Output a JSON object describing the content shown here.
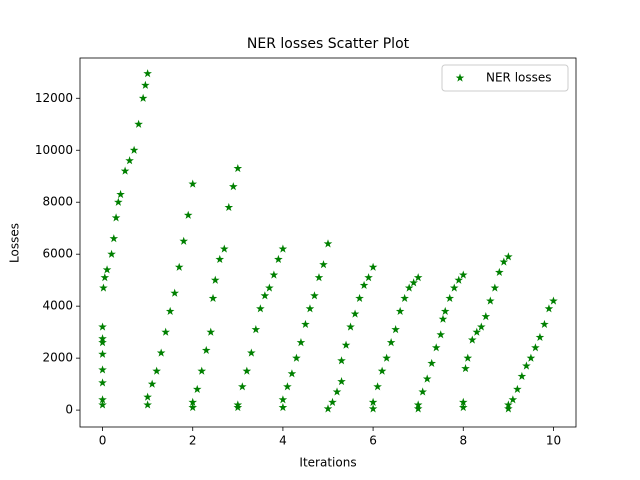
{
  "chart_data": {
    "type": "scatter",
    "title": "NER losses Scatter Plot",
    "x_label": "Iterations",
    "y_label": "Losses",
    "series": [
      {
        "name": "NER losses",
        "color": "#008000",
        "marker": "star",
        "x": [
          0,
          0,
          0,
          0,
          0,
          0,
          0,
          0,
          0.02,
          0.05,
          0.1,
          0.2,
          0.25,
          0.3,
          0.35,
          0.4,
          0.5,
          0.6,
          0.7,
          0.8,
          0.9,
          0.95,
          1,
          1,
          1,
          1.1,
          1.2,
          1.3,
          1.4,
          1.5,
          1.6,
          1.7,
          1.8,
          1.9,
          2,
          2,
          2,
          2.1,
          2.2,
          2.3,
          2.4,
          2.45,
          2.5,
          2.6,
          2.7,
          2.8,
          2.9,
          3,
          3,
          3,
          3.1,
          3.2,
          3.3,
          3.4,
          3.5,
          3.6,
          3.7,
          3.8,
          3.9,
          4,
          4,
          4,
          4.1,
          4.2,
          4.3,
          4.4,
          4.5,
          4.6,
          4.7,
          4.8,
          4.9,
          5,
          5,
          5.1,
          5.2,
          5.3,
          5.3,
          5.4,
          5.5,
          5.6,
          5.7,
          5.8,
          5.9,
          6,
          6,
          6,
          6.1,
          6.2,
          6.3,
          6.4,
          6.5,
          6.6,
          6.7,
          6.8,
          6.9,
          7,
          7,
          7,
          7.1,
          7.2,
          7.3,
          7.4,
          7.5,
          7.55,
          7.6,
          7.7,
          7.8,
          7.9,
          8,
          8,
          8,
          8.05,
          8.1,
          8.2,
          8.3,
          8.4,
          8.5,
          8.6,
          8.7,
          8.8,
          8.9,
          9,
          9,
          9,
          9.1,
          9.2,
          9.3,
          9.4,
          9.5,
          9.6,
          9.7,
          9.8,
          9.9,
          10
        ],
        "values": [
          200,
          400,
          1050,
          1550,
          2150,
          2600,
          2750,
          3200,
          4700,
          5100,
          5400,
          6000,
          6600,
          7400,
          8000,
          8300,
          9200,
          9600,
          10000,
          11000,
          12000,
          12500,
          12950,
          200,
          500,
          1000,
          1500,
          2200,
          3000,
          3800,
          4500,
          5500,
          6500,
          7500,
          8700,
          100,
          300,
          800,
          1500,
          2300,
          3000,
          4300,
          5000,
          5800,
          6200,
          7800,
          8600,
          9300,
          100,
          200,
          900,
          1500,
          2200,
          3100,
          3900,
          4400,
          4700,
          5200,
          5800,
          6200,
          100,
          400,
          900,
          1400,
          2000,
          2600,
          3300,
          3900,
          4400,
          5100,
          5600,
          6400,
          50,
          300,
          700,
          1100,
          1900,
          2500,
          3200,
          3700,
          4300,
          4800,
          5100,
          5500,
          50,
          300,
          900,
          1500,
          2000,
          2600,
          3100,
          3800,
          4300,
          4700,
          4900,
          5100,
          50,
          200,
          700,
          1200,
          1800,
          2400,
          2900,
          3500,
          3800,
          4300,
          4700,
          5000,
          5200,
          100,
          300,
          1600,
          2000,
          2700,
          3000,
          3200,
          3600,
          4200,
          4700,
          5300,
          5700,
          5900,
          50,
          200,
          400,
          800,
          1300,
          1700,
          2000,
          2400,
          2800,
          3300,
          3900,
          4200
        ]
      }
    ],
    "xlim": [
      -0.5,
      10.5
    ],
    "ylim": [
      -650,
      13550
    ],
    "xticks": [
      0,
      2,
      4,
      6,
      8,
      10
    ],
    "yticks": [
      0,
      2000,
      4000,
      6000,
      8000,
      10000,
      12000
    ],
    "legend": "upper right"
  }
}
